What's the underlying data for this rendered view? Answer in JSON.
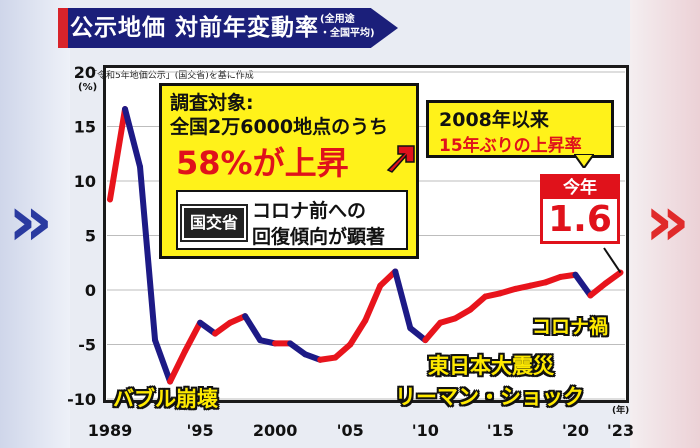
{
  "title": {
    "main": "公示地価 対前年変動率",
    "sub_line1": "(全用途",
    "sub_line2": "・全国平均)"
  },
  "source": "「令和5年地価公示」(国交省)を基に作成",
  "y_unit": "(%)",
  "x_unit": "(年)",
  "note_survey": {
    "line1": "調査対象:",
    "line2": "全国2万6000地点のうち",
    "line3": "58%が上昇",
    "badge": "国交省",
    "line4": "コロナ前への",
    "line5": "回復傾向が顕著"
  },
  "note_since": {
    "line1": "2008年以来",
    "line2": "15年ぶりの上昇率"
  },
  "current": {
    "label": "今年",
    "value": "1.6"
  },
  "annotations": {
    "bubble": "バブル崩壊",
    "quake": "東日本大震災",
    "lehman": "リーマン・ショック",
    "covid": "コロナ禍"
  },
  "colors": {
    "rise": "#e8141c",
    "fall": "#1d1a86",
    "title_bg": "#1b1f7a",
    "accent_red": "#e0121b",
    "callout_yellow": "#fff21a"
  },
  "chart_data": {
    "type": "line",
    "title": "公示地価 対前年変動率",
    "ylabel": "(%)",
    "xlabel": "(年)",
    "ylim": [
      -10,
      20
    ],
    "xlim": [
      1988.8,
      2023.3
    ],
    "yticks": [
      "20",
      "15",
      "10",
      "5",
      "0",
      "-5",
      "-10"
    ],
    "ytick_values": [
      20,
      15,
      10,
      5,
      0,
      -5,
      -10
    ],
    "xticks": [
      "1989",
      "'95",
      "2000",
      "'05",
      "'10",
      "'15",
      "'20",
      "'23"
    ],
    "xtick_values": [
      1989,
      1995,
      2000,
      2005,
      2010,
      2015,
      2020,
      2023
    ],
    "grid": true,
    "series": [
      {
        "x": [
          1989,
          1990,
          1991,
          1992,
          1993,
          1994,
          1995,
          1996,
          1997,
          1998,
          1999,
          2000,
          2001,
          2002,
          2003,
          2004,
          2005,
          2006,
          2007,
          2008,
          2009,
          2010,
          2011,
          2012,
          2013,
          2014,
          2015,
          2016,
          2017,
          2018,
          2019,
          2020,
          2021,
          2022,
          2023
        ],
        "y": [
          8.3,
          16.6,
          11.3,
          -4.6,
          -8.4,
          -5.6,
          -3.0,
          -4.0,
          -3.0,
          -2.4,
          -4.6,
          -4.9,
          -4.9,
          -5.9,
          -6.4,
          -6.2,
          -5.0,
          -2.8,
          0.4,
          1.7,
          -3.5,
          -4.6,
          -3.0,
          -2.6,
          -1.8,
          -0.6,
          -0.3,
          0.1,
          0.4,
          0.7,
          1.2,
          1.4,
          -0.5,
          0.6,
          1.6
        ]
      }
    ]
  }
}
